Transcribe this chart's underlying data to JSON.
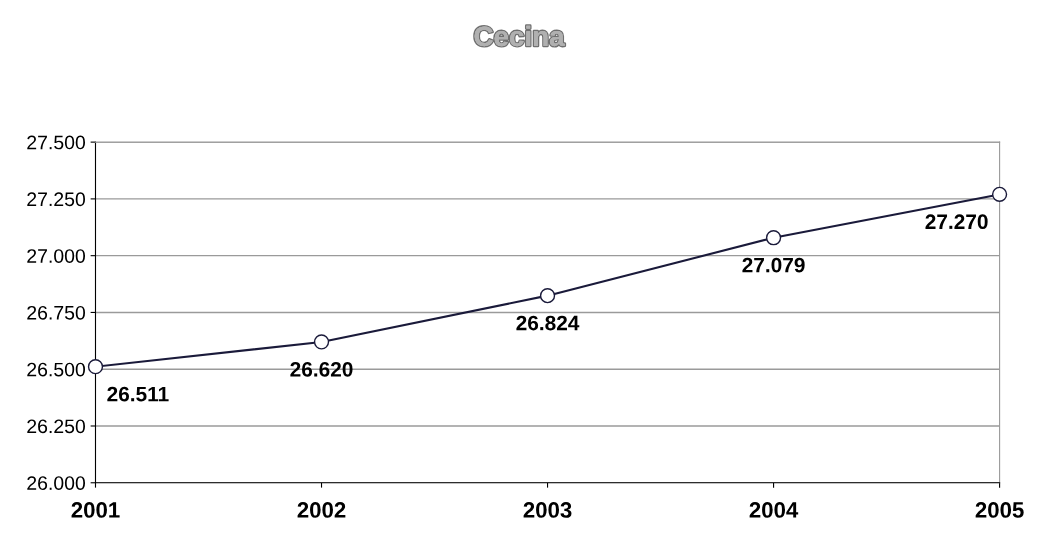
{
  "chart_data": {
    "type": "line",
    "title": "Cecina",
    "categories": [
      "2001",
      "2002",
      "2003",
      "2004",
      "2005"
    ],
    "series": [
      {
        "color": "#1a1a3a",
        "values": [
          26511,
          26620,
          26824,
          27079,
          27270
        ],
        "value_labels": [
          "26.511",
          "26.620",
          "26.824",
          "27.079",
          "27.270"
        ]
      }
    ],
    "ylim": [
      26000,
      27500
    ],
    "yticks": [
      {
        "value": 26000,
        "label": "26.000"
      },
      {
        "value": 26250,
        "label": "26.250"
      },
      {
        "value": 26500,
        "label": "26.500"
      },
      {
        "value": 26750,
        "label": "26.750"
      },
      {
        "value": 27000,
        "label": "27.000"
      },
      {
        "value": 27250,
        "label": "27.250"
      },
      {
        "value": 27500,
        "label": "27.500"
      }
    ],
    "grid": "y",
    "marker": "circle",
    "line_style": "solid",
    "legend": false
  }
}
